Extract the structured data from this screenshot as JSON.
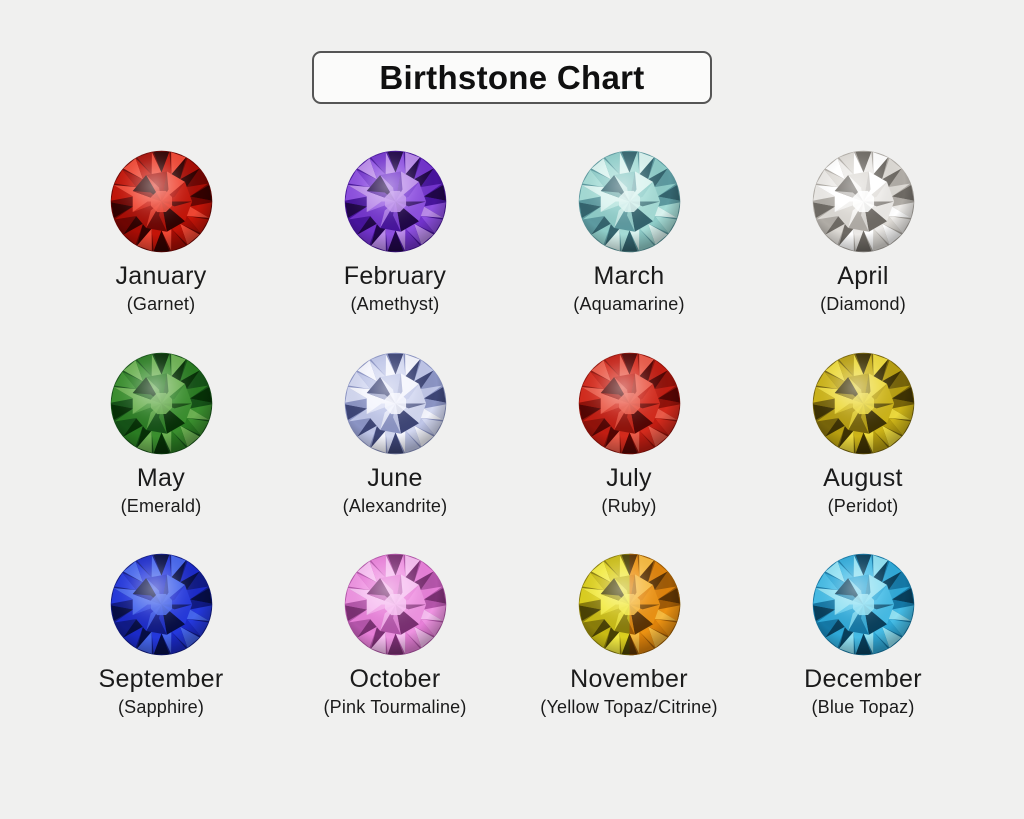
{
  "page": {
    "background": "#f0f0ef",
    "text_color": "#1b1b1b"
  },
  "title": {
    "label": "Birthstone Chart",
    "box_border_color": "#555555",
    "box_background": "#fbfbfa"
  },
  "stones": [
    {
      "month": "January",
      "name": "(Garnet)",
      "palette": {
        "light": "#ef4633",
        "mid": "#c41408",
        "base": "#a80d05",
        "dark": "#6e0502",
        "darkest": "#320100"
      }
    },
    {
      "month": "February",
      "name": "(Amethyst)",
      "palette": {
        "light": "#b98ae9",
        "mid": "#8d4fe0",
        "base": "#7233cc",
        "dark": "#47149c",
        "darkest": "#200648"
      }
    },
    {
      "month": "March",
      "name": "(Aquamarine)",
      "palette": {
        "light": "#d9f3ef",
        "mid": "#a5dcd6",
        "base": "#8eccc8",
        "dark": "#5d9aa0",
        "darkest": "#34646e"
      }
    },
    {
      "month": "April",
      "name": "(Diamond)",
      "palette": {
        "light": "#ffffff",
        "mid": "#eceae7",
        "base": "#dddad5",
        "dark": "#b0aca6",
        "darkest": "#6e6a64"
      }
    },
    {
      "month": "May",
      "name": "(Emerald)",
      "palette": {
        "light": "#6cb152",
        "mid": "#3a8f2e",
        "base": "#2a7c22",
        "dark": "#155217",
        "darkest": "#063006"
      }
    },
    {
      "month": "June",
      "name": "(Alexandrite)",
      "palette": {
        "light": "#f4f5fd",
        "mid": "#d3d8f1",
        "base": "#bfc6e8",
        "dark": "#8b94c4",
        "darkest": "#3d4576"
      }
    },
    {
      "month": "July",
      "name": "(Ruby)",
      "palette": {
        "light": "#ea5a48",
        "mid": "#d42a1c",
        "base": "#c21d12",
        "dark": "#91120a",
        "darkest": "#550503"
      }
    },
    {
      "month": "August",
      "name": "(Peridot)",
      "palette": {
        "light": "#ecd93c",
        "mid": "#cdb418",
        "base": "#b89f10",
        "dark": "#77640a",
        "darkest": "#3e3203"
      }
    },
    {
      "month": "September",
      "name": "(Sapphire)",
      "palette": {
        "light": "#4565ec",
        "mid": "#2438dd",
        "base": "#1b2ac9",
        "dark": "#101a86",
        "darkest": "#060d45"
      }
    },
    {
      "month": "October",
      "name": "(Pink Tourmaline)",
      "palette": {
        "light": "#f6bdf0",
        "mid": "#ef93e2",
        "base": "#e77fd8",
        "dark": "#b455aa",
        "darkest": "#7a2f72"
      }
    },
    {
      "month": "November",
      "name": "(Yellow Topaz/Citrine)",
      "palette": {
        "light": "#f2ea42",
        "mid": "#ddd01e",
        "base": "#c9bb14",
        "dark": "#8a7d0a",
        "darkest": "#4a4204"
      },
      "palette2": {
        "light": "#f6b93e",
        "mid": "#ec9212",
        "base": "#df830b",
        "dark": "#a05b06",
        "darkest": "#5c3303"
      }
    },
    {
      "month": "December",
      "name": "(Blue Topaz)",
      "palette": {
        "light": "#90e0f2",
        "mid": "#45bce6",
        "base": "#2fa9d8",
        "dark": "#1478a6",
        "darkest": "#083f5c"
      }
    }
  ]
}
